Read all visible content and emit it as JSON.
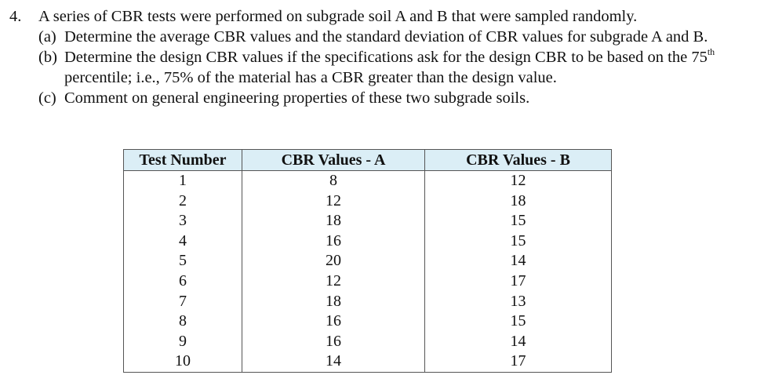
{
  "problem": {
    "number": "4.",
    "stem": "A series of CBR tests were performed on subgrade soil A and B that were sampled randomly.",
    "parts": [
      {
        "label": "(a)",
        "text": "Determine the average CBR values and the standard deviation of CBR values for subgrade A and B."
      },
      {
        "label": "(b)",
        "text_before": "Determine the design CBR values if the specifications ask for the design CBR to be based on the 75",
        "superscript": "th",
        "text_after": " percentile; i.e., 75% of the material has a CBR greater than the design value."
      },
      {
        "label": "(c)",
        "text": "Comment on general engineering properties of these two subgrade soils."
      }
    ]
  },
  "table": {
    "headers": [
      "Test Number",
      "CBR Values - A",
      "CBR Values - B"
    ],
    "header_bg": "#dbeef6",
    "rows": [
      [
        "1",
        "8",
        "12"
      ],
      [
        "2",
        "12",
        "18"
      ],
      [
        "3",
        "18",
        "15"
      ],
      [
        "4",
        "16",
        "15"
      ],
      [
        "5",
        "20",
        "14"
      ],
      [
        "6",
        "12",
        "17"
      ],
      [
        "7",
        "18",
        "13"
      ],
      [
        "8",
        "16",
        "15"
      ],
      [
        "9",
        "16",
        "14"
      ],
      [
        "10",
        "14",
        "17"
      ]
    ]
  }
}
